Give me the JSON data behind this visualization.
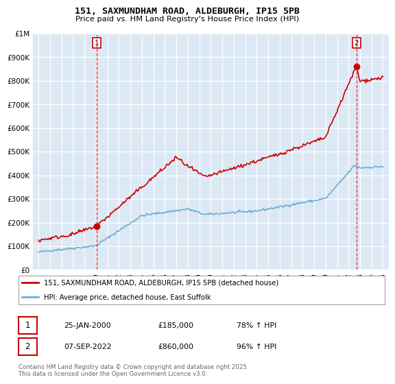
{
  "title": "151, SAXMUNDHAM ROAD, ALDEBURGH, IP15 5PB",
  "subtitle": "Price paid vs. HM Land Registry's House Price Index (HPI)",
  "ylim": [
    0,
    1000000
  ],
  "yticks": [
    0,
    100000,
    200000,
    300000,
    400000,
    500000,
    600000,
    700000,
    800000,
    900000,
    1000000
  ],
  "ytick_labels": [
    "£0",
    "£100K",
    "£200K",
    "£300K",
    "£400K",
    "£500K",
    "£600K",
    "£700K",
    "£800K",
    "£900K",
    "£1M"
  ],
  "hpi_color": "#6baed6",
  "price_color": "#cc0000",
  "vline_color": "#cc0000",
  "sale1_date": 2000.07,
  "sale1_price": 185000,
  "sale1_label": "1",
  "sale2_date": 2022.68,
  "sale2_price": 860000,
  "sale2_label": "2",
  "legend1_text": "151, SAXMUNDHAM ROAD, ALDEBURGH, IP15 5PB (detached house)",
  "legend2_text": "HPI: Average price, detached house, East Suffolk",
  "footer": "Contains HM Land Registry data © Crown copyright and database right 2025.\nThis data is licensed under the Open Government Licence v3.0.",
  "bg_color": "#ffffff",
  "plot_bg_color": "#dce9f5",
  "grid_color": "#ffffff"
}
